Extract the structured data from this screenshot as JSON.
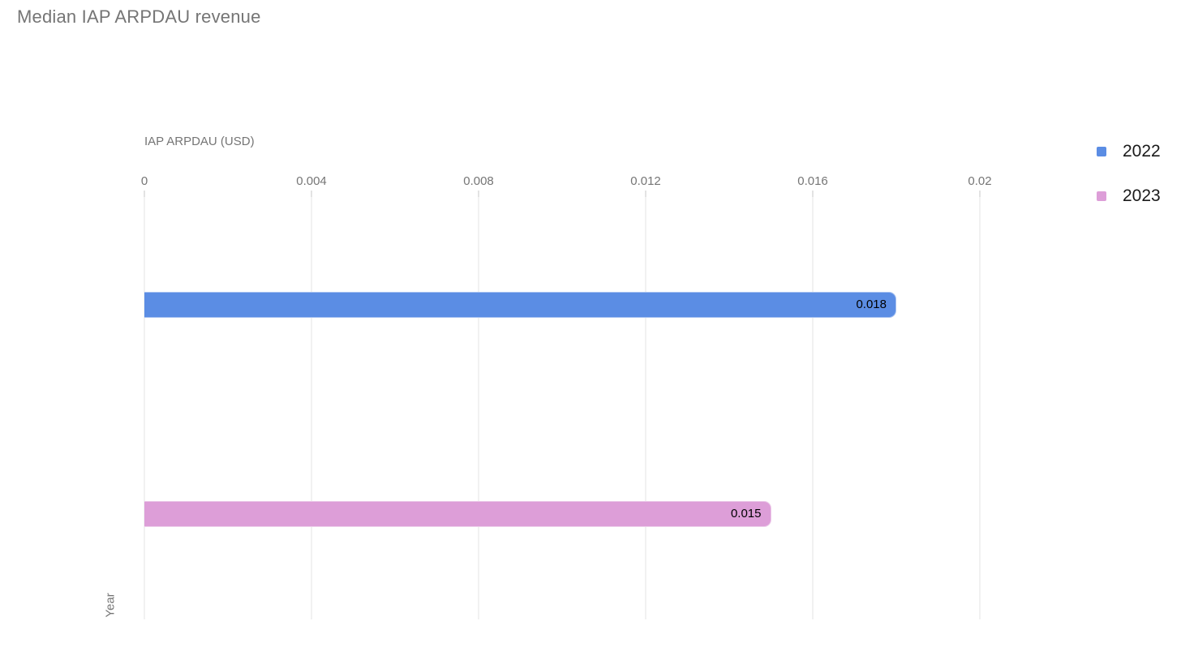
{
  "page": {
    "title": "Median IAP ARPDAU revenue"
  },
  "chart_data": {
    "type": "bar",
    "orientation": "horizontal",
    "title": "Median IAP ARPDAU revenue",
    "xlabel": "IAP ARPDAU (USD)",
    "ylabel": "Year",
    "categories": [
      "2022",
      "2023"
    ],
    "values": [
      0.018,
      0.015
    ],
    "value_labels": [
      "0.018",
      "0.015"
    ],
    "colors": [
      "#5B8DE4",
      "#DD9ED8"
    ],
    "xlim": [
      0,
      0.02
    ],
    "xticks": [
      0,
      0.004,
      0.008,
      0.012,
      0.016,
      0.02
    ],
    "xtick_labels": [
      "0",
      "0.004",
      "0.008",
      "0.012",
      "0.016",
      "0.02"
    ],
    "grid": true,
    "legend": {
      "position": "right",
      "items": [
        {
          "label": "2022",
          "color": "#5B8DE4"
        },
        {
          "label": "2023",
          "color": "#DD9ED8"
        }
      ]
    },
    "text_colors": {
      "title": "#757575",
      "axis": "#757575",
      "bar_label": "#000000",
      "legend": "#1a1a1a"
    }
  }
}
